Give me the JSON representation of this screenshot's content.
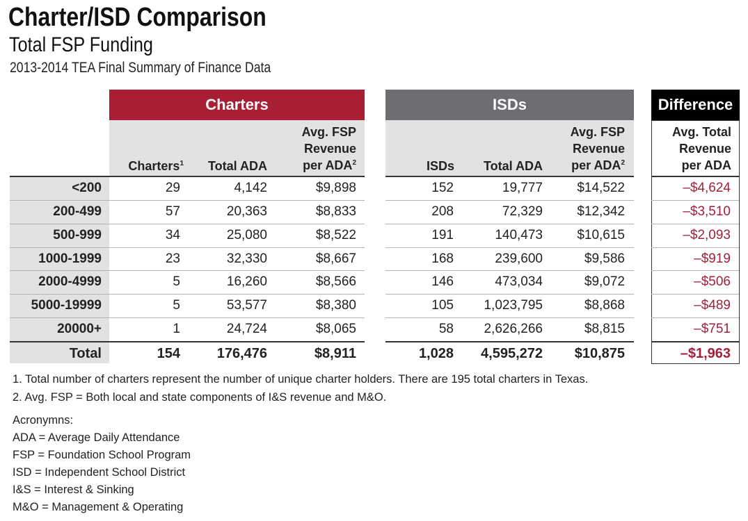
{
  "title": "Charter/ISD Comparison",
  "subtitle": "Total FSP Funding",
  "source": "2013-2014 TEA Final Summary of Finance Data",
  "colors": {
    "charters": "#a81f35",
    "isds": "#6d6e71",
    "difference": "#000000",
    "negative": "#a3203a",
    "shade": "#e1e2e4"
  },
  "chart_data": {
    "type": "table",
    "groups": {
      "charters": "Charters",
      "isds": "ISDs",
      "difference": "Difference"
    },
    "headers": {
      "charters_count": {
        "text": "Charters",
        "sup": "1"
      },
      "charters_ada": "Total ADA",
      "charters_rev_l1": "Avg. FSP",
      "charters_rev_l2": "Revenue",
      "charters_rev_l3": {
        "text": "per ADA",
        "sup": "2"
      },
      "isds_count": "ISDs",
      "isds_ada": "Total ADA",
      "isds_rev_l1": "Avg. FSP",
      "isds_rev_l2": "Revenue",
      "isds_rev_l3": {
        "text": "per ADA",
        "sup": "2"
      },
      "diff_l1": "Avg. Total",
      "diff_l2": "Revenue",
      "diff_l3": "per ADA"
    },
    "rows": [
      {
        "size": "<200",
        "charters": "29",
        "charter_ada": "4,142",
        "charter_rev": "$9,898",
        "isds": "152",
        "isd_ada": "19,777",
        "isd_rev": "$14,522",
        "difference": "–$4,624"
      },
      {
        "size": "200-499",
        "charters": "57",
        "charter_ada": "20,363",
        "charter_rev": "$8,833",
        "isds": "208",
        "isd_ada": "72,329",
        "isd_rev": "$12,342",
        "difference": "–$3,510"
      },
      {
        "size": "500-999",
        "charters": "34",
        "charter_ada": "25,080",
        "charter_rev": "$8,522",
        "isds": "191",
        "isd_ada": "140,473",
        "isd_rev": "$10,615",
        "difference": "–$2,093"
      },
      {
        "size": "1000-1999",
        "charters": "23",
        "charter_ada": "32,330",
        "charter_rev": "$8,667",
        "isds": "168",
        "isd_ada": "239,600",
        "isd_rev": "$9,586",
        "difference": "–$919"
      },
      {
        "size": "2000-4999",
        "charters": "5",
        "charter_ada": "16,260",
        "charter_rev": "$8,566",
        "isds": "146",
        "isd_ada": "473,034",
        "isd_rev": "$9,072",
        "difference": "–$506"
      },
      {
        "size": "5000-19999",
        "charters": "5",
        "charter_ada": "53,577",
        "charter_rev": "$8,380",
        "isds": "105",
        "isd_ada": "1,023,795",
        "isd_rev": "$8,868",
        "difference": "–$489"
      },
      {
        "size": "20000+",
        "charters": "1",
        "charter_ada": "24,724",
        "charter_rev": "$8,065",
        "isds": "58",
        "isd_ada": "2,626,266",
        "isd_rev": "$8,815",
        "difference": "–$751"
      }
    ],
    "total": {
      "size": "Total",
      "charters": "154",
      "charter_ada": "176,476",
      "charter_rev": "$8,911",
      "isds": "1,028",
      "isd_ada": "4,595,272",
      "isd_rev": "$10,875",
      "difference": "–$1,963"
    }
  },
  "footnotes": [
    "1. Total number of charters represent the number of unique charter holders. There are 195 total charters in Texas.",
    "2. Avg. FSP = Both local and state components of I&S revenue and M&O."
  ],
  "acronyms": {
    "heading": "Acronymns:",
    "items": [
      "ADA = Average Daily Attendance",
      "FSP = Foundation School Program",
      "ISD = Independent School District",
      "I&S = Interest & Sinking",
      "M&O = Management & Operating"
    ]
  }
}
